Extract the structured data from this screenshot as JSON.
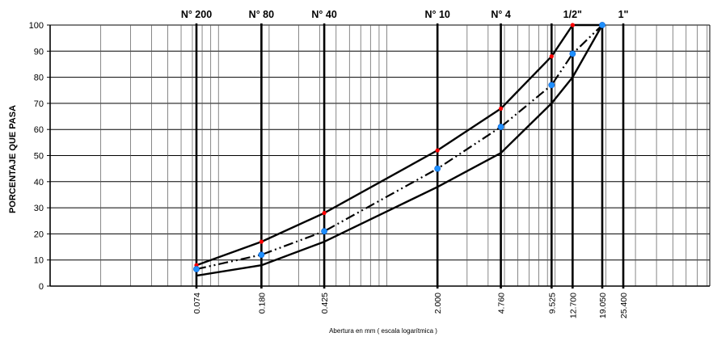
{
  "chart_data": {
    "type": "line",
    "title": "",
    "xlabel": "Abertura en mm  ( escala logarítmica )",
    "ylabel": "PORCENTAJE QUE PASA",
    "x_scale": "log",
    "ylim": [
      0,
      100
    ],
    "y_ticks": [
      "0",
      "10",
      "20",
      "30",
      "40",
      "50",
      "60",
      "70",
      "80",
      "90",
      "100"
    ],
    "x_ticks": [
      {
        "value": 0.074,
        "label": "0.074"
      },
      {
        "value": 0.18,
        "label": "0.180"
      },
      {
        "value": 0.425,
        "label": "0.425"
      },
      {
        "value": 2.0,
        "label": "2.000"
      },
      {
        "value": 4.76,
        "label": "4.760"
      },
      {
        "value": 9.525,
        "label": "9.525"
      },
      {
        "value": 12.7,
        "label": "12.700"
      },
      {
        "value": 19.05,
        "label": "19.050"
      },
      {
        "value": 25.4,
        "label": "25.400"
      }
    ],
    "sieves": [
      {
        "label": "N° 200",
        "value": 0.074
      },
      {
        "label": "N° 80",
        "value": 0.18
      },
      {
        "label": "N° 40",
        "value": 0.425
      },
      {
        "label": "N° 10",
        "value": 2.0
      },
      {
        "label": "N° 4",
        "value": 4.76
      },
      {
        "label": "1/2\"",
        "value": 12.7
      },
      {
        "label": "1\"",
        "value": 25.4
      }
    ],
    "grid": true,
    "series": [
      {
        "role": "upper-limit",
        "x": [
          0.074,
          0.18,
          0.425,
          2.0,
          4.76,
          9.525,
          12.7,
          19.05
        ],
        "values": [
          8,
          17,
          28,
          52,
          68,
          88,
          100,
          100
        ],
        "line_style": "solid",
        "marker_color": "#ff0000"
      },
      {
        "role": "lower-limit",
        "x": [
          0.074,
          0.18,
          0.425,
          2.0,
          4.76,
          9.525,
          12.7,
          19.05
        ],
        "values": [
          4,
          8,
          17,
          38,
          51,
          70,
          80,
          100
        ],
        "line_style": "solid",
        "marker_color": ""
      },
      {
        "role": "sample",
        "x": [
          0.074,
          0.18,
          0.425,
          2.0,
          4.76,
          9.525,
          12.7,
          19.05
        ],
        "values": [
          6.5,
          12,
          21,
          45,
          61,
          77,
          89,
          100
        ],
        "line_style": "dash-dot-dot",
        "marker_color": "#1e90ff"
      }
    ]
  }
}
